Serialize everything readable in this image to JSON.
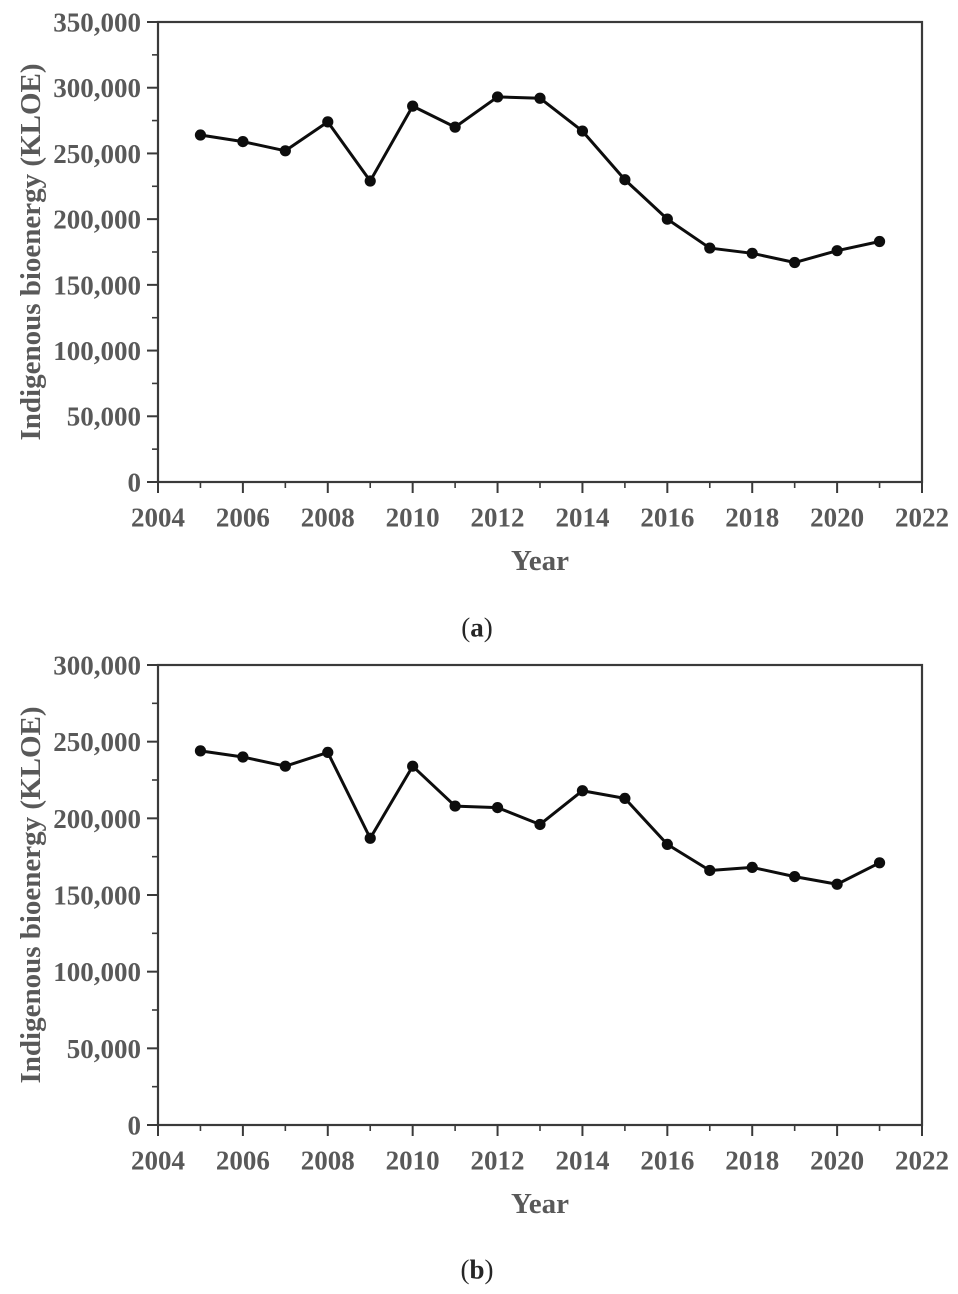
{
  "figure": {
    "background_color": "#ffffff",
    "text_color": "#595959",
    "caption_color": "#262626",
    "axis_color": "#3a3a3a",
    "data_color": "#0d0d0d"
  },
  "chart_data": [
    {
      "panel": "a",
      "type": "line",
      "title": "",
      "xlabel": "Year",
      "ylabel": "Indigenous bioenergy (KLOE)",
      "caption": {
        "open": "(",
        "letter": "a",
        "close": ")"
      },
      "xlim": [
        2004,
        2022
      ],
      "ylim": [
        0,
        350000
      ],
      "grid": false,
      "legend": "none",
      "marker": "filled-circle",
      "x": [
        2005,
        2006,
        2007,
        2008,
        2009,
        2010,
        2011,
        2012,
        2013,
        2014,
        2015,
        2016,
        2017,
        2018,
        2019,
        2020,
        2021
      ],
      "values": [
        264000,
        259000,
        252000,
        274000,
        229000,
        286000,
        270000,
        293000,
        292000,
        267000,
        230000,
        200000,
        178000,
        174000,
        167000,
        176000,
        183000
      ],
      "x_ticks": {
        "values": [
          2004,
          2006,
          2008,
          2010,
          2012,
          2014,
          2016,
          2018,
          2020,
          2022
        ],
        "labels": [
          "2004",
          "2006",
          "2008",
          "2010",
          "2012",
          "2014",
          "2016",
          "2018",
          "2020",
          "2022"
        ],
        "minor_step": 1
      },
      "y_ticks": {
        "values": [
          0,
          50000,
          100000,
          150000,
          200000,
          250000,
          300000,
          350000
        ],
        "labels": [
          "0",
          "50,000",
          "100,000",
          "150,000",
          "200,000",
          "250,000",
          "300,000",
          "350,000"
        ],
        "minor_step": 25000
      }
    },
    {
      "panel": "b",
      "type": "line",
      "title": "",
      "xlabel": "Year",
      "ylabel": "Indigenous bioenergy (KLOE)",
      "caption": {
        "open": "(",
        "letter": "b",
        "close": ")"
      },
      "xlim": [
        2004,
        2022
      ],
      "ylim": [
        0,
        300000
      ],
      "grid": false,
      "legend": "none",
      "marker": "filled-circle",
      "x": [
        2005,
        2006,
        2007,
        2008,
        2009,
        2010,
        2011,
        2012,
        2013,
        2014,
        2015,
        2016,
        2017,
        2018,
        2019,
        2020,
        2021
      ],
      "values": [
        244000,
        240000,
        234000,
        243000,
        187000,
        234000,
        208000,
        207000,
        196000,
        218000,
        213000,
        183000,
        166000,
        168000,
        162000,
        157000,
        171000
      ],
      "x_ticks": {
        "values": [
          2004,
          2006,
          2008,
          2010,
          2012,
          2014,
          2016,
          2018,
          2020,
          2022
        ],
        "labels": [
          "2004",
          "2006",
          "2008",
          "2010",
          "2012",
          "2014",
          "2016",
          "2018",
          "2020",
          "2022"
        ],
        "minor_step": 1
      },
      "y_ticks": {
        "values": [
          0,
          50000,
          100000,
          150000,
          200000,
          250000,
          300000
        ],
        "labels": [
          "0",
          "50,000",
          "100,000",
          "150,000",
          "200,000",
          "250,000",
          "300,000"
        ],
        "minor_step": 25000
      }
    }
  ]
}
